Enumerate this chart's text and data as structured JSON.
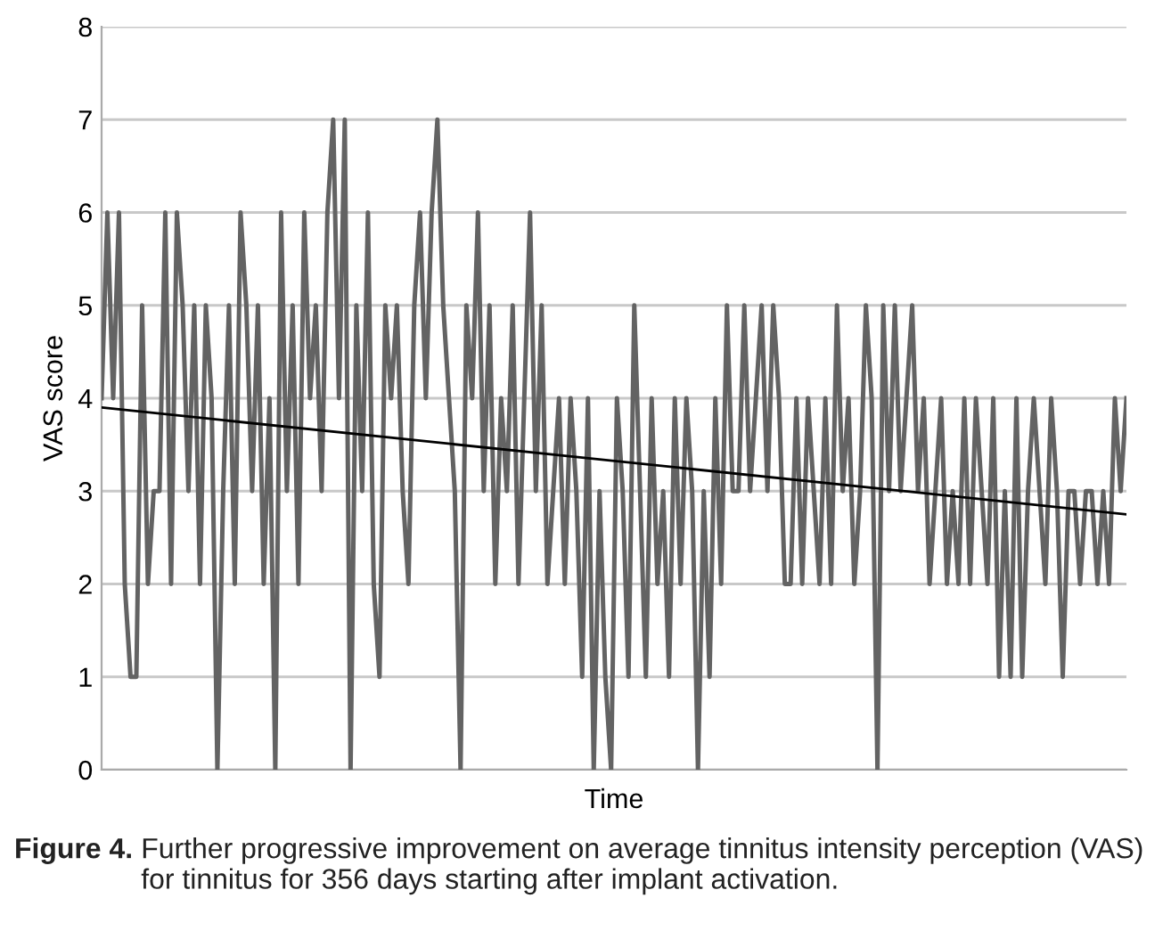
{
  "chart_data": {
    "type": "line",
    "xlabel": "Time",
    "ylabel": "VAS score",
    "annotations": [
      "Figure 4.",
      "Further progressive improvement on average tinnitus intensity perception (VAS) for tinnitus for 356 days starting after implant activation."
    ],
    "categories": [
      null,
      null,
      null,
      null,
      null,
      null,
      null,
      null,
      null,
      null,
      null,
      null,
      null,
      null,
      null,
      null,
      null,
      null,
      null,
      null,
      null,
      null,
      null,
      null,
      null,
      null,
      null,
      null,
      null,
      null,
      null,
      null,
      null,
      null,
      null,
      null,
      null,
      null,
      null,
      null,
      null,
      null,
      null,
      null,
      null,
      null,
      null,
      null,
      null,
      null,
      null,
      null,
      null,
      null,
      null,
      null,
      null,
      null,
      null,
      null,
      null,
      null,
      null,
      null,
      null,
      null,
      null,
      null,
      null,
      null,
      null,
      null,
      null,
      null,
      null,
      null,
      null,
      null,
      null,
      null,
      null,
      null,
      null,
      null,
      null,
      null,
      null,
      null,
      null,
      null,
      null,
      null,
      null,
      null,
      null,
      null,
      null,
      null,
      null,
      null,
      null,
      null,
      null,
      null,
      null,
      null,
      null,
      null,
      null,
      null,
      null,
      null,
      null,
      null,
      null,
      null,
      null,
      null,
      null,
      null,
      null,
      null,
      null,
      null,
      null,
      null,
      null,
      null,
      null,
      null,
      null,
      null,
      null,
      null,
      null,
      null,
      null,
      null,
      null,
      null,
      null,
      null,
      null,
      null,
      null,
      null,
      null,
      null,
      null,
      null,
      null,
      null,
      null,
      null,
      null,
      null,
      null,
      null,
      null,
      null,
      null,
      null,
      null,
      null,
      null,
      null,
      null,
      null,
      null,
      null,
      null,
      null,
      null,
      null,
      null,
      null,
      null,
      null
    ],
    "ylim": [
      0,
      8
    ],
    "yticks": [
      0,
      1,
      2,
      3,
      4,
      5,
      6,
      7,
      8
    ],
    "grid": "y",
    "series": [
      {
        "color": "#636363",
        "values": [
          4,
          6,
          4,
          6,
          2,
          1,
          1,
          5,
          2,
          3,
          3,
          6,
          2,
          6,
          5,
          3,
          5,
          2,
          5,
          4,
          0,
          3,
          5,
          2,
          6,
          5,
          3,
          5,
          2,
          4,
          0,
          6,
          3,
          5,
          2,
          6,
          4,
          5,
          3,
          6,
          7,
          4,
          7,
          0,
          5,
          3,
          6,
          2,
          1,
          5,
          4,
          5,
          3,
          2,
          5,
          6,
          4,
          6,
          7,
          5,
          4,
          3,
          0,
          5,
          4,
          6,
          3,
          5,
          2,
          4,
          3,
          5,
          2,
          4,
          6,
          3,
          5,
          2,
          3,
          4,
          2,
          4,
          3,
          1,
          4,
          0,
          3,
          1,
          0,
          4,
          3,
          1,
          5,
          3,
          1,
          4,
          2,
          3,
          1,
          4,
          2,
          4,
          3,
          0,
          3,
          1,
          4,
          2,
          5,
          3,
          3,
          5,
          3,
          4,
          5,
          3,
          5,
          4,
          2,
          2,
          4,
          2,
          4,
          3,
          2,
          4,
          2,
          5,
          3,
          4,
          2,
          3,
          5,
          4,
          0,
          5,
          3,
          5,
          3,
          4,
          5,
          3,
          4,
          2,
          3,
          4,
          2,
          3,
          2,
          4,
          2,
          4,
          3,
          2,
          4,
          1,
          3,
          1,
          4,
          1,
          3,
          4,
          3,
          2,
          4,
          3,
          1,
          3,
          3,
          2,
          3,
          3,
          2,
          3,
          2,
          4,
          3,
          4
        ]
      },
      {
        "type": "line",
        "color": "#000000",
        "values": [
          3.9,
          null,
          null,
          null,
          null,
          null,
          null,
          null,
          null,
          null,
          null,
          null,
          null,
          null,
          null,
          null,
          null,
          null,
          null,
          null,
          null,
          null,
          null,
          null,
          null,
          null,
          null,
          null,
          null,
          null,
          null,
          null,
          null,
          null,
          null,
          null,
          null,
          null,
          null,
          null,
          null,
          null,
          null,
          null,
          null,
          null,
          null,
          null,
          null,
          null,
          null,
          null,
          null,
          null,
          null,
          null,
          null,
          null,
          null,
          null,
          null,
          null,
          null,
          null,
          null,
          null,
          null,
          null,
          null,
          null,
          null,
          null,
          null,
          null,
          null,
          null,
          null,
          null,
          null,
          null,
          null,
          null,
          null,
          null,
          null,
          null,
          null,
          null,
          null,
          null,
          null,
          null,
          null,
          null,
          null,
          null,
          null,
          null,
          null,
          null,
          null,
          null,
          null,
          null,
          null,
          null,
          null,
          null,
          null,
          null,
          null,
          null,
          null,
          null,
          null,
          null,
          null,
          null,
          null,
          null,
          null,
          null,
          null,
          null,
          null,
          null,
          null,
          null,
          null,
          null,
          null,
          null,
          null,
          null,
          null,
          null,
          null,
          null,
          null,
          null,
          null,
          null,
          null,
          null,
          null,
          null,
          null,
          null,
          null,
          null,
          null,
          null,
          null,
          null,
          null,
          null,
          null,
          null,
          null,
          null,
          null,
          null,
          null,
          null,
          null,
          null,
          null,
          null,
          null,
          null,
          null,
          null,
          null,
          null,
          null,
          null,
          null,
          2.75
        ]
      }
    ]
  }
}
